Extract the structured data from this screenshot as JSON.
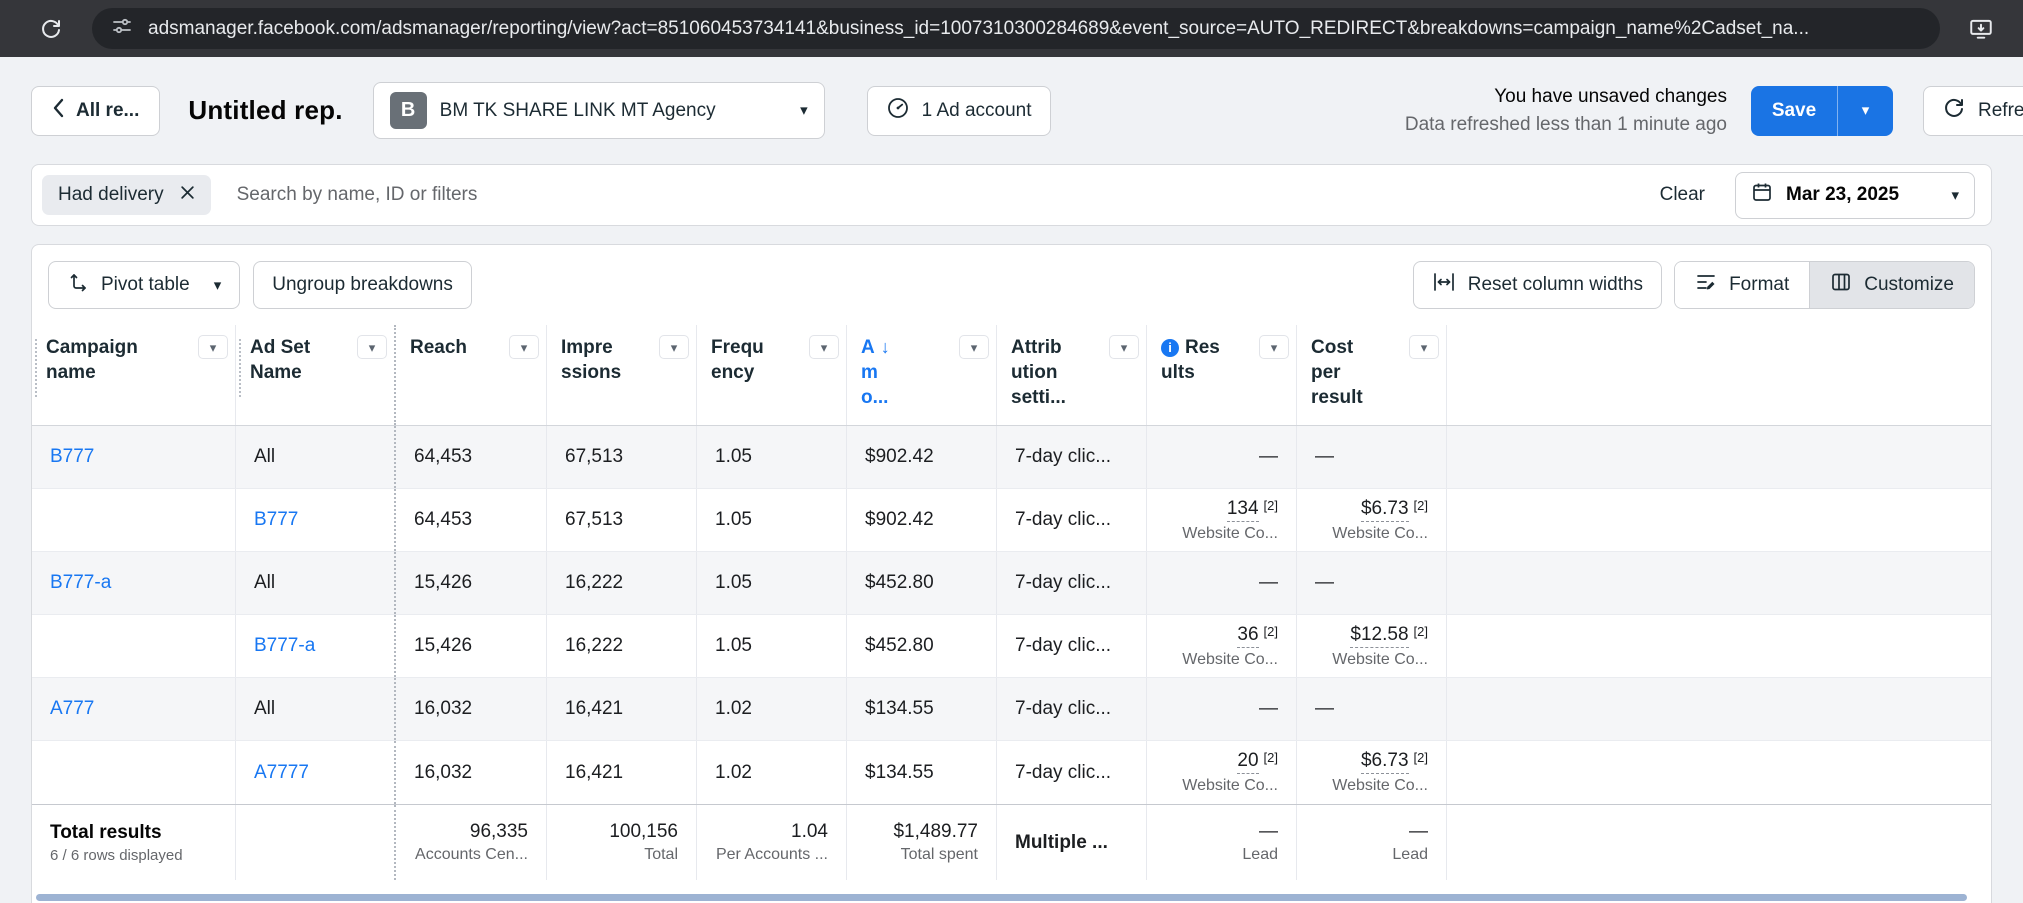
{
  "glyphs": {
    "chevron_down": "▾",
    "sort_desc": "↓",
    "info": "i"
  },
  "browser": {
    "url": "adsmanager.facebook.com/adsmanager/reporting/view?act=851060453734141&business_id=1007310300284689&event_source=AUTO_REDIRECT&breakdowns=campaign_name%2Cadset_na..."
  },
  "header": {
    "back_label": "All re...",
    "title": "Untitled rep.",
    "business_avatar": "B",
    "business_name": "BM TK SHARE LINK MT Agency",
    "ad_account_label": "1 Ad account",
    "unsaved_text": "You have unsaved changes",
    "refreshed_text": "Data refreshed less than 1 minute ago",
    "save_label": "Save",
    "refresh_label": "Refresh"
  },
  "filters": {
    "chip_label": "Had delivery",
    "search_placeholder": "Search by name, ID or filters",
    "clear_label": "Clear",
    "date_label": "Mar 23, 2025"
  },
  "toolbar": {
    "pivot_label": "Pivot table",
    "ungroup_label": "Ungroup breakdowns",
    "reset_label": "Reset column widths",
    "format_label": "Format",
    "customize_label": "Customize"
  },
  "table": {
    "columns": [
      {
        "name": "campaign-name",
        "lines": [
          "Campaign",
          "name"
        ],
        "grip": true
      },
      {
        "name": "ad-set-name",
        "lines": [
          "Ad Set",
          "Name"
        ],
        "grip": true,
        "divider": true
      },
      {
        "name": "reach",
        "lines": [
          "Reach"
        ]
      },
      {
        "name": "impressions",
        "lines": [
          "Impre",
          "ssions"
        ]
      },
      {
        "name": "frequency",
        "lines": [
          "Frequ",
          "ency"
        ]
      },
      {
        "name": "amount-spent",
        "lines": [
          "A",
          "m",
          "o..."
        ],
        "sorted": "desc",
        "accent": true
      },
      {
        "name": "attribution-setting",
        "lines": [
          "Attrib",
          "ution",
          "setti..."
        ]
      },
      {
        "name": "results",
        "lines": [
          "Res",
          "ults"
        ],
        "info": true,
        "numeric": true
      },
      {
        "name": "cost-per-result",
        "lines": [
          "Cost",
          "per",
          "result"
        ],
        "numeric": true
      }
    ],
    "rows": [
      {
        "cells": [
          {
            "text": "B777",
            "link": true
          },
          {
            "text": "All"
          },
          {
            "text": "64,453"
          },
          {
            "text": "67,513"
          },
          {
            "text": "1.05"
          },
          {
            "text": "$902.42"
          },
          {
            "text": "7-day clic..."
          },
          {
            "text": "—"
          },
          {
            "text": "—",
            "align": "left"
          }
        ]
      },
      {
        "cells": [
          {
            "text": ""
          },
          {
            "text": "B777",
            "link": true
          },
          {
            "text": "64,453"
          },
          {
            "text": "67,513"
          },
          {
            "text": "1.05"
          },
          {
            "text": "$902.42"
          },
          {
            "text": "7-day clic..."
          },
          {
            "text": "134",
            "note": "[2]",
            "sub": "Website Co..."
          },
          {
            "text": "$6.73",
            "note": "[2]",
            "sub": "Website Co..."
          }
        ]
      },
      {
        "cells": [
          {
            "text": "B777-a",
            "link": true
          },
          {
            "text": "All"
          },
          {
            "text": "15,426"
          },
          {
            "text": "16,222"
          },
          {
            "text": "1.05"
          },
          {
            "text": "$452.80"
          },
          {
            "text": "7-day clic..."
          },
          {
            "text": "—"
          },
          {
            "text": "—",
            "align": "left"
          }
        ]
      },
      {
        "cells": [
          {
            "text": ""
          },
          {
            "text": "B777-a",
            "link": true
          },
          {
            "text": "15,426"
          },
          {
            "text": "16,222"
          },
          {
            "text": "1.05"
          },
          {
            "text": "$452.80"
          },
          {
            "text": "7-day clic..."
          },
          {
            "text": "36",
            "note": "[2]",
            "sub": "Website Co..."
          },
          {
            "text": "$12.58",
            "note": "[2]",
            "sub": "Website Co..."
          }
        ]
      },
      {
        "cells": [
          {
            "text": "A777",
            "link": true
          },
          {
            "text": "All"
          },
          {
            "text": "16,032"
          },
          {
            "text": "16,421"
          },
          {
            "text": "1.02"
          },
          {
            "text": "$134.55"
          },
          {
            "text": "7-day clic..."
          },
          {
            "text": "—"
          },
          {
            "text": "—",
            "align": "left"
          }
        ]
      },
      {
        "cells": [
          {
            "text": ""
          },
          {
            "text": "A7777",
            "link": true
          },
          {
            "text": "16,032"
          },
          {
            "text": "16,421"
          },
          {
            "text": "1.02"
          },
          {
            "text": "$134.55"
          },
          {
            "text": "7-day clic..."
          },
          {
            "text": "20",
            "note": "[2]",
            "sub": "Website Co..."
          },
          {
            "text": "$6.73",
            "note": "[2]",
            "sub": "Website Co..."
          }
        ]
      }
    ],
    "total": {
      "label": "Total results",
      "sublabel": "6 / 6 rows displayed",
      "cells": [
        {
          "value": "96,335",
          "sub": "Accounts Cen..."
        },
        {
          "value": "100,156",
          "sub": "Total"
        },
        {
          "value": "1.04",
          "sub": "Per Accounts ..."
        },
        {
          "value": "$1,489.77",
          "sub": "Total spent"
        },
        {
          "value": "Multiple ...",
          "bold": true,
          "align": "left"
        },
        {
          "value": "—",
          "sub": "Lead"
        },
        {
          "value": "—",
          "sub": "Lead"
        }
      ]
    }
  }
}
